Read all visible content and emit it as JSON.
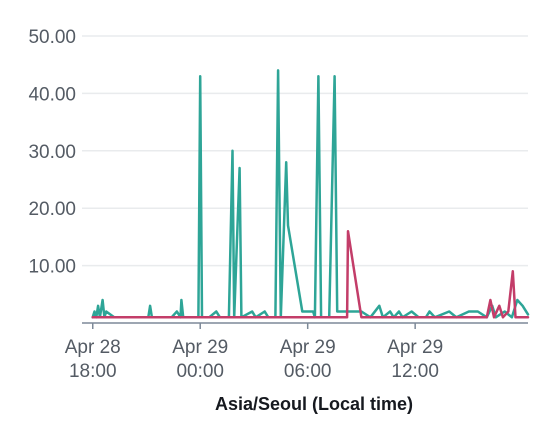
{
  "chart_data": {
    "type": "line",
    "title": "",
    "xlabel": "Asia/Seoul (Local time)",
    "ylabel": "",
    "x_range_hours": [
      -0.6,
      24.3
    ],
    "ylim": [
      0,
      50
    ],
    "y_ticks": [
      10,
      20,
      30,
      40,
      50
    ],
    "y_tick_labels": [
      "10.00",
      "20.00",
      "30.00",
      "40.00",
      "50.00"
    ],
    "x_ticks": [
      {
        "hour": 0,
        "line1": "Apr 28",
        "line2": "18:00"
      },
      {
        "hour": 6,
        "line1": "Apr 29",
        "line2": "00:00"
      },
      {
        "hour": 12,
        "line1": "Apr 29",
        "line2": "06:00"
      },
      {
        "hour": 18,
        "line1": "Apr 29",
        "line2": "12:00"
      }
    ],
    "grid": true,
    "legend": "none",
    "series": [
      {
        "color": "#2ea597",
        "points": [
          [
            0.0,
            1
          ],
          [
            0.1,
            2
          ],
          [
            0.2,
            1
          ],
          [
            0.3,
            3
          ],
          [
            0.4,
            1
          ],
          [
            0.55,
            4
          ],
          [
            0.65,
            1
          ],
          [
            0.75,
            2
          ],
          [
            1.2,
            1
          ],
          [
            3.1,
            1
          ],
          [
            3.2,
            3
          ],
          [
            3.3,
            1
          ],
          [
            4.4,
            1
          ],
          [
            4.7,
            2
          ],
          [
            4.9,
            1
          ],
          [
            4.95,
            4
          ],
          [
            5.05,
            1
          ],
          [
            5.9,
            1
          ],
          [
            6.0,
            43
          ],
          [
            6.1,
            1
          ],
          [
            6.5,
            1
          ],
          [
            6.9,
            2
          ],
          [
            7.1,
            1
          ],
          [
            7.6,
            1
          ],
          [
            7.8,
            30
          ],
          [
            7.9,
            1
          ],
          [
            8.2,
            27
          ],
          [
            8.3,
            1
          ],
          [
            8.9,
            2
          ],
          [
            9.1,
            1
          ],
          [
            9.6,
            2
          ],
          [
            9.8,
            1
          ],
          [
            10.2,
            1
          ],
          [
            10.35,
            44
          ],
          [
            10.5,
            1
          ],
          [
            10.8,
            28
          ],
          [
            10.9,
            17
          ],
          [
            11.7,
            2
          ],
          [
            12.3,
            2
          ],
          [
            12.4,
            1
          ],
          [
            12.6,
            43
          ],
          [
            12.75,
            1
          ],
          [
            13.2,
            1
          ],
          [
            13.5,
            43
          ],
          [
            13.65,
            2
          ],
          [
            14.4,
            2
          ],
          [
            15.0,
            2
          ],
          [
            15.5,
            1
          ],
          [
            16.0,
            3
          ],
          [
            16.2,
            1
          ],
          [
            16.6,
            2
          ],
          [
            16.8,
            1
          ],
          [
            17.1,
            2
          ],
          [
            17.3,
            1
          ],
          [
            17.8,
            2
          ],
          [
            18.2,
            1
          ],
          [
            18.6,
            1
          ],
          [
            18.8,
            2
          ],
          [
            19.1,
            1
          ],
          [
            19.9,
            2
          ],
          [
            20.3,
            1
          ],
          [
            21.0,
            2
          ],
          [
            21.5,
            2
          ],
          [
            22.0,
            1
          ],
          [
            22.3,
            3
          ],
          [
            22.5,
            1
          ],
          [
            23.0,
            2
          ],
          [
            23.4,
            1
          ],
          [
            23.7,
            4
          ],
          [
            24.0,
            3
          ],
          [
            24.3,
            1.5
          ]
        ]
      },
      {
        "color": "#c33d69",
        "points": [
          [
            0.0,
            1
          ],
          [
            14.2,
            1
          ],
          [
            14.25,
            16
          ],
          [
            15.0,
            1
          ],
          [
            22.0,
            1
          ],
          [
            22.2,
            4
          ],
          [
            22.4,
            1
          ],
          [
            22.7,
            3
          ],
          [
            22.9,
            1
          ],
          [
            23.2,
            2
          ],
          [
            23.45,
            9
          ],
          [
            23.6,
            1
          ],
          [
            24.3,
            1
          ]
        ]
      }
    ]
  }
}
